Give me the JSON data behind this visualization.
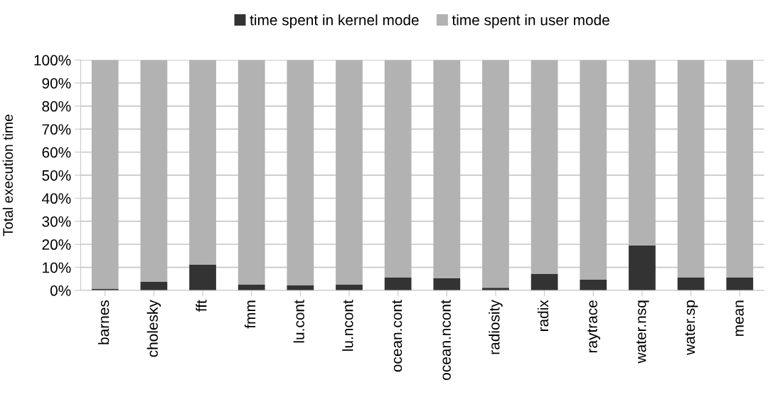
{
  "chart_data": {
    "type": "bar",
    "stacked": true,
    "ylabel": "Total execution time",
    "categories": [
      "barnes",
      "cholesky",
      "fft",
      "fmm",
      "lu.cont",
      "lu.ncont",
      "ocean.cont",
      "ocean.ncont",
      "radiosity",
      "radix",
      "raytrace",
      "water.nsq",
      "water.sp",
      "mean"
    ],
    "series": [
      {
        "name": "time spent in kernel mode",
        "color": "#333333",
        "values": [
          0.6,
          3.7,
          11.1,
          2.5,
          2.2,
          2.5,
          5.6,
          5.3,
          1.2,
          7.1,
          4.6,
          19.5,
          5.6,
          5.6
        ]
      },
      {
        "name": "time spent in user mode",
        "color": "#b2b2b2",
        "values": [
          99.4,
          96.3,
          88.9,
          97.5,
          97.8,
          97.5,
          94.4,
          94.7,
          98.8,
          92.9,
          95.4,
          80.5,
          94.4,
          94.4
        ]
      }
    ],
    "ylim": [
      0,
      100
    ],
    "yticks": [
      {
        "value": 0,
        "label": "0%"
      },
      {
        "value": 10,
        "label": "10%"
      },
      {
        "value": 20,
        "label": "20%"
      },
      {
        "value": 30,
        "label": "30%"
      },
      {
        "value": 40,
        "label": "40%"
      },
      {
        "value": 50,
        "label": "50%"
      },
      {
        "value": 60,
        "label": "60%"
      },
      {
        "value": 70,
        "label": "70%"
      },
      {
        "value": 80,
        "label": "80%"
      },
      {
        "value": 90,
        "label": "90%"
      },
      {
        "value": 100,
        "label": "100%"
      }
    ],
    "grid": "y",
    "legend": "top"
  }
}
